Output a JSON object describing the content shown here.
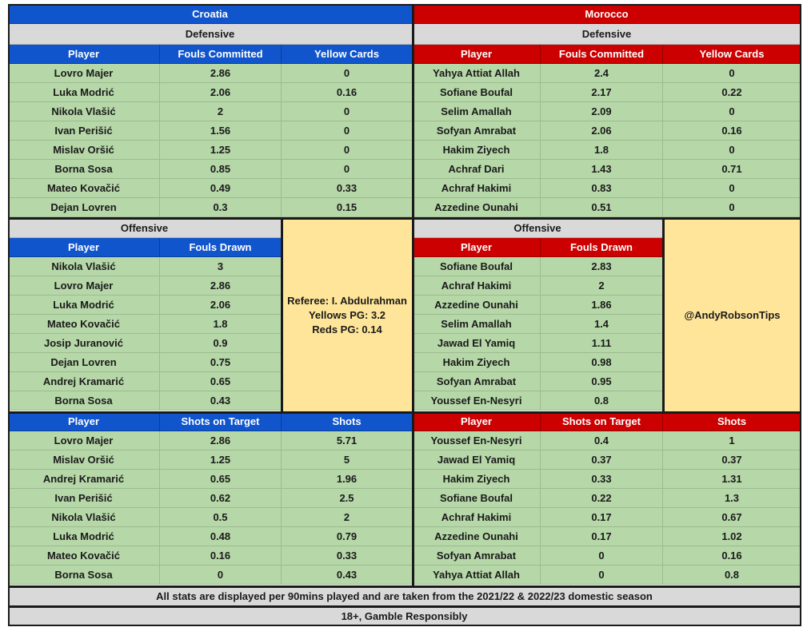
{
  "croatia": {
    "team": "Croatia",
    "defensive_title": "Defensive",
    "defensive_headers": [
      "Player",
      "Fouls Committed",
      "Yellow Cards"
    ],
    "defensive_rows": [
      [
        "Lovro Majer",
        "2.86",
        "0"
      ],
      [
        "Luka Modrić",
        "2.06",
        "0.16"
      ],
      [
        "Nikola Vlašić",
        "2",
        "0"
      ],
      [
        "Ivan Perišić",
        "1.56",
        "0"
      ],
      [
        "Mislav Oršić",
        "1.25",
        "0"
      ],
      [
        "Borna Sosa",
        "0.85",
        "0"
      ],
      [
        "Mateo Kovačić",
        "0.49",
        "0.33"
      ],
      [
        "Dejan Lovren",
        "0.3",
        "0.15"
      ]
    ],
    "offensive_title": "Offensive",
    "offensive_headers": [
      "Player",
      "Fouls Drawn"
    ],
    "offensive_rows": [
      [
        "Nikola Vlašić",
        "3"
      ],
      [
        "Lovro Majer",
        "2.86"
      ],
      [
        "Luka Modrić",
        "2.06"
      ],
      [
        "Mateo Kovačić",
        "1.8"
      ],
      [
        "Josip Juranović",
        "0.9"
      ],
      [
        "Dejan Lovren",
        "0.75"
      ],
      [
        "Andrej Kramarić",
        "0.65"
      ],
      [
        "Borna Sosa",
        "0.43"
      ]
    ],
    "shots_headers": [
      "Player",
      "Shots on Target",
      "Shots"
    ],
    "shots_rows": [
      [
        "Lovro Majer",
        "2.86",
        "5.71"
      ],
      [
        "Mislav Oršić",
        "1.25",
        "5"
      ],
      [
        "Andrej Kramarić",
        "0.65",
        "1.96"
      ],
      [
        "Ivan Perišić",
        "0.62",
        "2.5"
      ],
      [
        "Nikola Vlašić",
        "0.5",
        "2"
      ],
      [
        "Luka Modrić",
        "0.48",
        "0.79"
      ],
      [
        "Mateo Kovačić",
        "0.16",
        "0.33"
      ],
      [
        "Borna Sosa",
        "0",
        "0.43"
      ]
    ]
  },
  "morocco": {
    "team": "Morocco",
    "defensive_title": "Defensive",
    "defensive_headers": [
      "Player",
      "Fouls Committed",
      "Yellow Cards"
    ],
    "defensive_rows": [
      [
        "Yahya Attiat Allah",
        "2.4",
        "0"
      ],
      [
        "Sofiane Boufal",
        "2.17",
        "0.22"
      ],
      [
        "Selim Amallah",
        "2.09",
        "0"
      ],
      [
        "Sofyan Amrabat",
        "2.06",
        "0.16"
      ],
      [
        "Hakim Ziyech",
        "1.8",
        "0"
      ],
      [
        "Achraf Dari",
        "1.43",
        "0.71"
      ],
      [
        "Achraf Hakimi",
        "0.83",
        "0"
      ],
      [
        "Azzedine Ounahi",
        "0.51",
        "0"
      ]
    ],
    "offensive_title": "Offensive",
    "offensive_headers": [
      "Player",
      "Fouls Drawn"
    ],
    "offensive_rows": [
      [
        "Sofiane Boufal",
        "2.83"
      ],
      [
        "Achraf Hakimi",
        "2"
      ],
      [
        "Azzedine Ounahi",
        "1.86"
      ],
      [
        "Selim Amallah",
        "1.4"
      ],
      [
        "Jawad El Yamiq",
        "1.11"
      ],
      [
        "Hakim Ziyech",
        "0.98"
      ],
      [
        "Sofyan Amrabat",
        "0.95"
      ],
      [
        "Youssef En-Nesyri",
        "0.8"
      ]
    ],
    "shots_headers": [
      "Player",
      "Shots on Target",
      "Shots"
    ],
    "shots_rows": [
      [
        "Youssef En-Nesyri",
        "0.4",
        "1"
      ],
      [
        "Jawad El Yamiq",
        "0.37",
        "0.37"
      ],
      [
        "Hakim Ziyech",
        "0.33",
        "1.31"
      ],
      [
        "Sofiane Boufal",
        "0.22",
        "1.3"
      ],
      [
        "Achraf Hakimi",
        "0.17",
        "0.67"
      ],
      [
        "Azzedine Ounahi",
        "0.17",
        "1.02"
      ],
      [
        "Sofyan Amrabat",
        "0",
        "0.16"
      ],
      [
        "Yahya Attiat Allah",
        "0",
        "0.8"
      ]
    ]
  },
  "referee": {
    "name": "Referee: I. Abdulrahman",
    "yellows": "Yellows PG: 3.2",
    "reds": "Reds PG: 0.14"
  },
  "handle": "@AndyRobsonTips",
  "footer_note": "All stats are displayed per 90mins played and are taken from the 2021/22 & 2022/23 domestic season",
  "gamble_note": "18+, Gamble Responsibly",
  "colors": {
    "croatia_header": "#1155cc",
    "morocco_header": "#cc0000",
    "data_cell": "#b6d7a8",
    "section_title": "#d9d9d9",
    "info_box": "#ffe599"
  }
}
